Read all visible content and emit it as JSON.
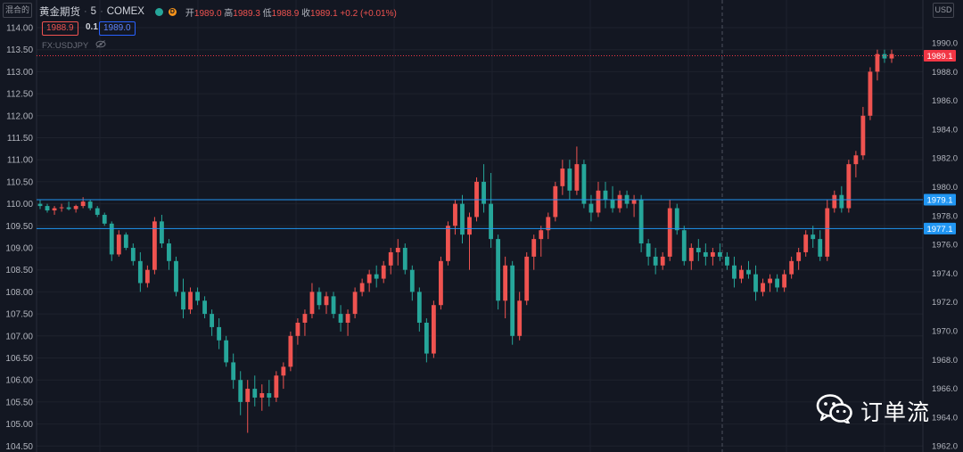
{
  "header": {
    "symbol": "黄金期货",
    "interval": "5",
    "exchange": "COMEX",
    "status_badge": "D",
    "ohlc": {
      "open_label": "开",
      "open": "1989.0",
      "high_label": "高",
      "high": "1989.3",
      "low_label": "低",
      "low": "1988.9",
      "close_label": "收",
      "close": "1989.1",
      "change": "+0.2 (+0.01%)"
    }
  },
  "trade": {
    "sell_price": "1988.9",
    "spread": "0.1",
    "buy_price": "1989.0"
  },
  "overlay": {
    "symbol": "FX:USDJPY"
  },
  "left_scale_button": "混合的",
  "right_scale_button": "USD",
  "watermark": {
    "text": "订单流",
    "icon": "wechat-icon"
  },
  "colors": {
    "background": "#131722",
    "up": "#ef5350",
    "down": "#26a69a",
    "hline": "#2196f3",
    "last_price": "#f23645"
  },
  "chart_data": {
    "type": "candlestick",
    "left_axis": {
      "ticks": [
        "114.00",
        "113.50",
        "113.00",
        "112.50",
        "112.00",
        "111.50",
        "111.00",
        "110.50",
        "110.00",
        "109.50",
        "109.00",
        "108.50",
        "108.00",
        "107.50",
        "107.00",
        "106.50",
        "106.00",
        "105.50",
        "105.00",
        "104.50"
      ]
    },
    "right_axis": {
      "ticks": [
        "1990.0",
        "1988.0",
        "1986.0",
        "1984.0",
        "1982.0",
        "1980.0",
        "1978.0",
        "1976.0",
        "1974.0",
        "1972.0",
        "1970.0",
        "1968.0",
        "1966.0",
        "1964.0",
        "1962.0"
      ]
    },
    "horizontal_lines": [
      {
        "price": 1979.1,
        "label": "1979.1"
      },
      {
        "price": 1977.1,
        "label": "1977.1"
      }
    ],
    "last_price": {
      "price": 1989.1,
      "label": "1989.1"
    },
    "grid": true,
    "overlay_candles_usdjpy": [
      [
        110.0,
        110.08,
        109.88,
        109.95
      ],
      [
        109.95,
        110.0,
        109.8,
        109.85
      ],
      [
        109.85,
        109.95,
        109.75,
        109.9
      ],
      [
        109.9,
        110.0,
        109.82,
        109.92
      ],
      [
        109.92,
        110.05,
        109.85,
        109.88
      ],
      [
        109.88,
        109.98,
        109.8,
        109.95
      ],
      [
        109.95,
        110.15,
        109.9,
        110.05
      ],
      [
        110.05,
        110.1,
        109.85,
        109.9
      ],
      [
        109.9,
        109.95,
        109.7,
        109.75
      ],
      [
        109.75,
        109.8,
        109.5,
        109.55
      ],
      [
        109.55,
        109.6,
        108.7,
        108.85
      ],
      [
        108.85,
        109.4,
        108.8,
        109.3
      ],
      [
        109.3,
        109.35,
        108.95,
        109.0
      ],
      [
        109.0,
        109.1,
        108.6,
        108.7
      ],
      [
        108.7,
        108.9,
        108.0,
        108.2
      ],
      [
        108.2,
        108.6,
        108.1,
        108.5
      ],
      [
        108.5,
        109.7,
        108.4,
        109.6
      ],
      [
        109.6,
        109.75,
        109.0,
        109.1
      ],
      [
        109.1,
        109.2,
        108.5,
        108.7
      ],
      [
        108.7,
        108.8,
        107.9,
        108.0
      ],
      [
        108.0,
        108.3,
        107.4,
        107.6
      ],
      [
        107.6,
        108.1,
        107.5,
        108.0
      ],
      [
        108.0,
        108.1,
        107.7,
        107.8
      ],
      [
        107.8,
        107.9,
        107.4,
        107.5
      ],
      [
        107.5,
        107.6,
        107.0,
        107.2
      ],
      [
        107.2,
        107.4,
        106.7,
        106.9
      ],
      [
        106.9,
        107.0,
        106.3,
        106.4
      ],
      [
        106.4,
        106.6,
        105.8,
        106.0
      ],
      [
        106.0,
        106.2,
        105.2,
        105.5
      ],
      [
        105.5,
        106.0,
        104.8,
        105.8
      ],
      [
        105.8,
        106.1,
        105.4,
        105.6
      ],
      [
        105.6,
        105.9,
        105.3,
        105.7
      ],
      [
        105.7,
        106.0,
        105.4,
        105.6
      ],
      [
        105.6,
        106.2,
        105.5,
        106.1
      ],
      [
        106.1,
        106.4,
        105.8,
        106.3
      ],
      [
        106.3,
        107.1,
        106.2,
        107.0
      ],
      [
        107.0,
        107.4,
        106.8,
        107.3
      ],
      [
        107.3,
        107.6,
        107.0,
        107.5
      ],
      [
        107.5,
        108.2,
        107.4,
        108.0
      ],
      [
        108.0,
        108.1,
        107.6,
        107.7
      ],
      [
        107.7,
        108.0,
        107.5,
        107.9
      ],
      [
        107.9,
        108.0,
        107.4,
        107.5
      ],
      [
        107.5,
        107.7,
        107.1,
        107.3
      ],
      [
        107.3,
        107.6,
        107.0,
        107.5
      ],
      [
        107.5,
        108.1,
        107.4,
        108.0
      ],
      [
        108.0,
        108.3,
        107.9,
        108.2
      ],
      [
        108.2,
        108.5,
        108.0,
        108.4
      ],
      [
        108.4,
        108.6,
        108.1,
        108.3
      ],
      [
        108.3,
        108.7,
        108.2,
        108.6
      ],
      [
        108.6,
        109.0,
        108.4,
        108.9
      ],
      [
        108.9,
        109.2,
        108.6,
        109.0
      ],
      [
        109.0,
        109.1,
        108.4,
        108.5
      ],
      [
        108.5,
        108.6,
        107.8,
        108.0
      ],
      [
        108.0,
        108.1,
        107.1,
        107.3
      ],
      [
        107.3,
        107.4,
        106.4,
        106.6
      ],
      [
        106.6,
        107.8,
        106.5,
        107.7
      ],
      [
        107.7,
        108.8,
        107.6,
        108.7
      ],
      [
        108.7,
        109.6,
        108.6,
        109.5
      ],
      [
        109.5,
        110.1,
        109.3,
        110.0
      ],
      [
        110.0,
        110.2,
        109.1,
        109.3
      ],
      [
        109.3,
        109.8,
        108.5,
        109.7
      ],
      [
        109.7,
        110.6,
        109.6,
        110.5
      ],
      [
        110.5,
        110.9,
        109.8,
        110.0
      ],
      [
        110.0,
        110.7,
        109.0,
        109.2
      ],
      [
        109.2,
        109.3,
        107.6,
        107.8
      ],
      [
        107.8,
        108.8,
        107.4,
        108.6
      ],
      [
        108.6,
        108.7,
        106.8,
        107.0
      ],
      [
        107.0,
        108.0,
        106.9,
        107.8
      ],
      [
        107.8,
        108.9,
        107.7,
        108.8
      ],
      [
        108.8,
        109.3,
        108.5,
        109.2
      ],
      [
        109.2,
        109.5,
        108.8,
        109.4
      ],
      [
        109.4,
        109.8,
        109.2,
        109.7
      ],
      [
        109.7,
        110.5,
        109.6,
        110.4
      ],
      [
        110.4,
        111.0,
        110.2,
        110.8
      ],
      [
        110.8,
        111.0,
        110.1,
        110.3
      ],
      [
        110.3,
        111.3,
        110.2,
        110.9
      ],
      [
        110.9,
        111.0,
        109.9,
        110.0
      ],
      [
        110.0,
        110.2,
        109.6,
        109.8
      ],
      [
        109.8,
        110.5,
        109.7,
        110.3
      ],
      [
        110.3,
        110.5,
        109.9,
        110.1
      ],
      [
        110.1,
        110.4,
        109.8,
        109.9
      ],
      [
        109.9,
        110.3,
        109.8,
        110.2
      ],
      [
        110.2,
        110.3,
        109.9,
        110.0
      ],
      [
        110.0,
        110.2,
        109.7,
        110.1
      ],
      [
        110.1,
        110.2,
        108.9,
        109.1
      ],
      [
        109.1,
        109.2,
        108.6,
        108.8
      ],
      [
        108.8,
        109.0,
        108.4,
        108.6
      ],
      [
        108.6,
        108.9,
        108.5,
        108.8
      ],
      [
        108.8,
        110.1,
        108.7,
        109.9
      ],
      [
        109.9,
        110.0,
        109.3,
        109.4
      ],
      [
        109.4,
        109.5,
        108.6,
        108.7
      ],
      [
        108.7,
        109.1,
        108.5,
        109.0
      ],
      [
        109.0,
        109.2,
        108.7,
        108.9
      ],
      [
        108.9,
        109.1,
        108.6,
        108.8
      ],
      [
        108.8,
        109.0,
        108.6,
        108.9
      ],
      [
        108.9,
        109.1,
        108.7,
        108.8
      ],
      [
        108.8,
        108.9,
        108.5,
        108.6
      ],
      [
        108.6,
        108.8,
        108.1,
        108.3
      ],
      [
        108.3,
        108.6,
        108.2,
        108.5
      ],
      [
        108.5,
        108.7,
        108.3,
        108.4
      ],
      [
        108.4,
        108.6,
        107.8,
        108.0
      ],
      [
        108.0,
        108.3,
        107.9,
        108.2
      ],
      [
        108.2,
        108.4,
        108.0,
        108.3
      ],
      [
        108.3,
        108.4,
        108.0,
        108.1
      ],
      [
        108.1,
        108.5,
        108.0,
        108.4
      ],
      [
        108.4,
        108.8,
        108.3,
        108.7
      ],
      [
        108.7,
        109.0,
        108.5,
        108.9
      ],
      [
        108.9,
        109.4,
        108.8,
        109.3
      ],
      [
        109.3,
        109.5,
        109.0,
        109.2
      ],
      [
        109.2,
        109.4,
        108.7,
        108.8
      ],
      [
        108.8,
        110.1,
        108.7,
        109.9
      ],
      [
        109.9,
        110.3,
        109.8,
        110.2
      ],
      [
        110.2,
        110.4,
        109.8,
        109.9
      ],
      [
        109.9,
        111.0,
        109.8,
        110.9
      ],
      [
        110.9,
        111.2,
        110.6,
        111.1
      ],
      [
        111.1,
        112.2,
        111.0,
        112.0
      ],
      [
        112.0,
        113.1,
        111.9,
        113.0
      ],
      [
        113.0,
        113.5,
        112.8,
        113.4
      ],
      [
        113.4,
        113.5,
        113.2,
        113.3
      ],
      [
        113.3,
        113.5,
        113.2,
        113.4
      ]
    ]
  }
}
